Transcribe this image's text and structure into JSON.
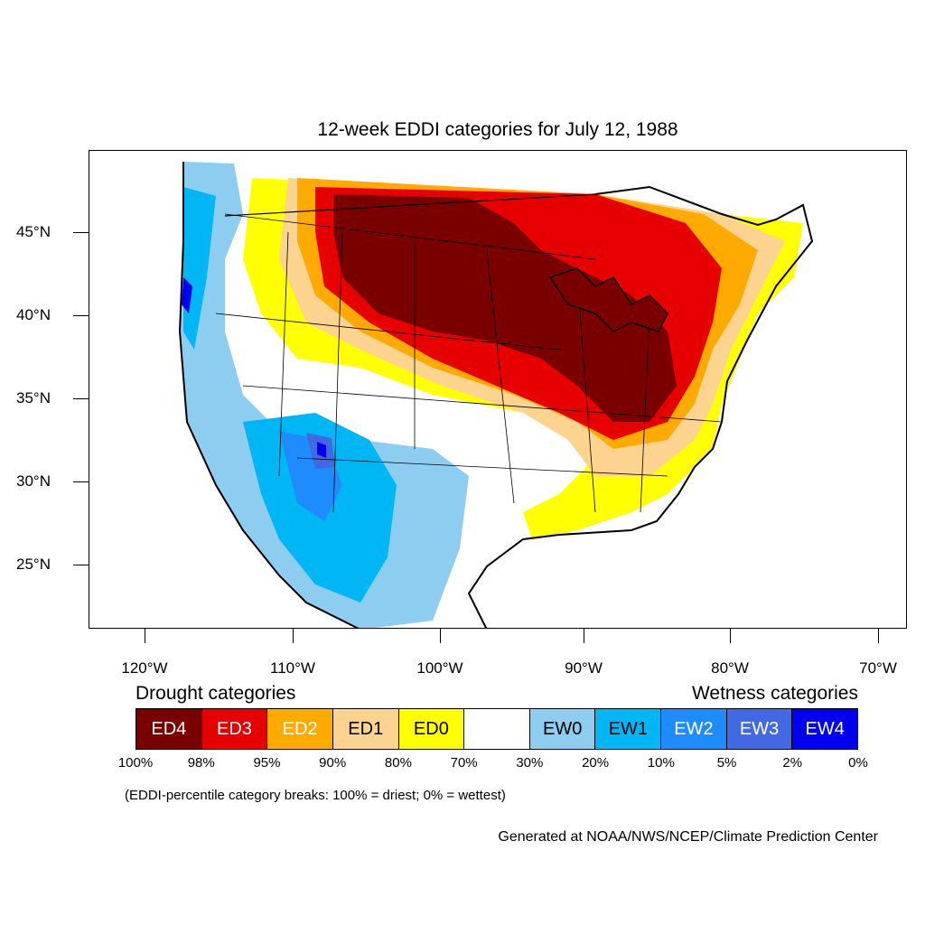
{
  "title": "12-week EDDI categories for July 12, 1988",
  "axes": {
    "lat_labels": [
      "45°N",
      "40°N",
      "35°N",
      "30°N",
      "25°N"
    ],
    "lon_labels": [
      "120°W",
      "110°W",
      "100°W",
      "90°W",
      "80°W",
      "70°W"
    ]
  },
  "legend": {
    "drought_heading": "Drought categories",
    "wetness_heading": "Wetness categories",
    "categories": [
      {
        "label": "ED4",
        "color": "#7a0000",
        "text_color": "#ffffff"
      },
      {
        "label": "ED3",
        "color": "#e60000",
        "text_color": "#ffffff"
      },
      {
        "label": "ED2",
        "color": "#ffaa00",
        "text_color": "#ffffff"
      },
      {
        "label": "ED1",
        "color": "#fcd38f",
        "text_color": "#000000"
      },
      {
        "label": "ED0",
        "color": "#ffff00",
        "text_color": "#000000"
      },
      {
        "label": "",
        "color": "#ffffff",
        "text_color": "#000000"
      },
      {
        "label": "EW0",
        "color": "#8dcdf0",
        "text_color": "#000000"
      },
      {
        "label": "EW1",
        "color": "#00b6f5",
        "text_color": "#000000"
      },
      {
        "label": "EW2",
        "color": "#1e8cff",
        "text_color": "#ffffff"
      },
      {
        "label": "EW3",
        "color": "#4169e1",
        "text_color": "#ffffff"
      },
      {
        "label": "EW4",
        "color": "#0000f0",
        "text_color": "#ffffff"
      }
    ],
    "percent_breaks": [
      "100%",
      "98%",
      "95%",
      "90%",
      "80%",
      "70%",
      "30%",
      "20%",
      "10%",
      "5%",
      "2%",
      "0%"
    ],
    "note": "(EDDI-percentile category breaks: 100% = driest; 0% = wettest)"
  },
  "credit": "Generated at NOAA/NWS/NCEP/Climate Prediction Center"
}
